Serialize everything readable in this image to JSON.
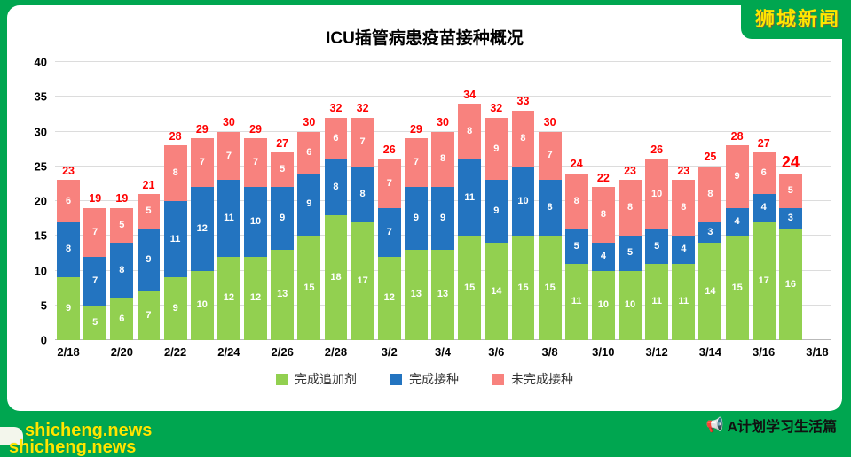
{
  "page": {
    "brand": "狮城新闻",
    "watermark": "shicheng.news",
    "footer": "A计划学习生活篇",
    "footer_icon": "📢"
  },
  "chart_data": {
    "type": "bar",
    "stacked": true,
    "title": "ICU插管病患疫苗接种概况",
    "xlabel": "",
    "ylabel": "",
    "ylim": [
      0,
      40
    ],
    "yticks": [
      0,
      5,
      10,
      15,
      20,
      25,
      30,
      35,
      40
    ],
    "grid": true,
    "legend_position": "bottom",
    "x_tick_labels": [
      "2/18",
      "2/20",
      "2/22",
      "2/24",
      "2/26",
      "2/28",
      "3/2",
      "3/4",
      "3/6",
      "3/8",
      "3/10",
      "3/12",
      "3/14",
      "3/16",
      "3/18"
    ],
    "categories": [
      "2/18",
      "2/19",
      "2/20",
      "2/21",
      "2/22",
      "2/23",
      "2/24",
      "2/25",
      "2/26",
      "2/27",
      "2/28",
      "3/1",
      "3/2",
      "3/3",
      "3/4",
      "3/5",
      "3/6",
      "3/7",
      "3/8",
      "3/9",
      "3/10",
      "3/11",
      "3/12",
      "3/13",
      "3/14",
      "3/15",
      "3/16",
      "3/17"
    ],
    "series": [
      {
        "name": "完成追加剂",
        "color": "#92D050",
        "values": [
          9,
          5,
          6,
          7,
          9,
          10,
          12,
          12,
          13,
          15,
          18,
          17,
          12,
          13,
          13,
          15,
          14,
          15,
          15,
          11,
          10,
          10,
          11,
          11,
          14,
          15,
          17,
          16
        ]
      },
      {
        "name": "完成接种",
        "color": "#2374C0",
        "values": [
          8,
          7,
          8,
          9,
          11,
          12,
          11,
          10,
          9,
          9,
          8,
          8,
          7,
          9,
          9,
          11,
          9,
          10,
          8,
          5,
          4,
          5,
          5,
          4,
          3,
          4,
          4,
          3
        ]
      },
      {
        "name": "未完成接种",
        "color": "#F8827E",
        "values": [
          6,
          7,
          5,
          5,
          8,
          7,
          7,
          7,
          5,
          6,
          6,
          7,
          7,
          7,
          8,
          8,
          9,
          8,
          7,
          8,
          8,
          8,
          10,
          8,
          8,
          9,
          6,
          5
        ]
      }
    ],
    "totals": [
      23,
      19,
      19,
      21,
      28,
      29,
      30,
      29,
      27,
      30,
      32,
      32,
      26,
      29,
      30,
      34,
      32,
      33,
      30,
      24,
      22,
      23,
      26,
      23,
      25,
      28,
      27,
      24
    ],
    "total_label_color": "#FF0000"
  }
}
